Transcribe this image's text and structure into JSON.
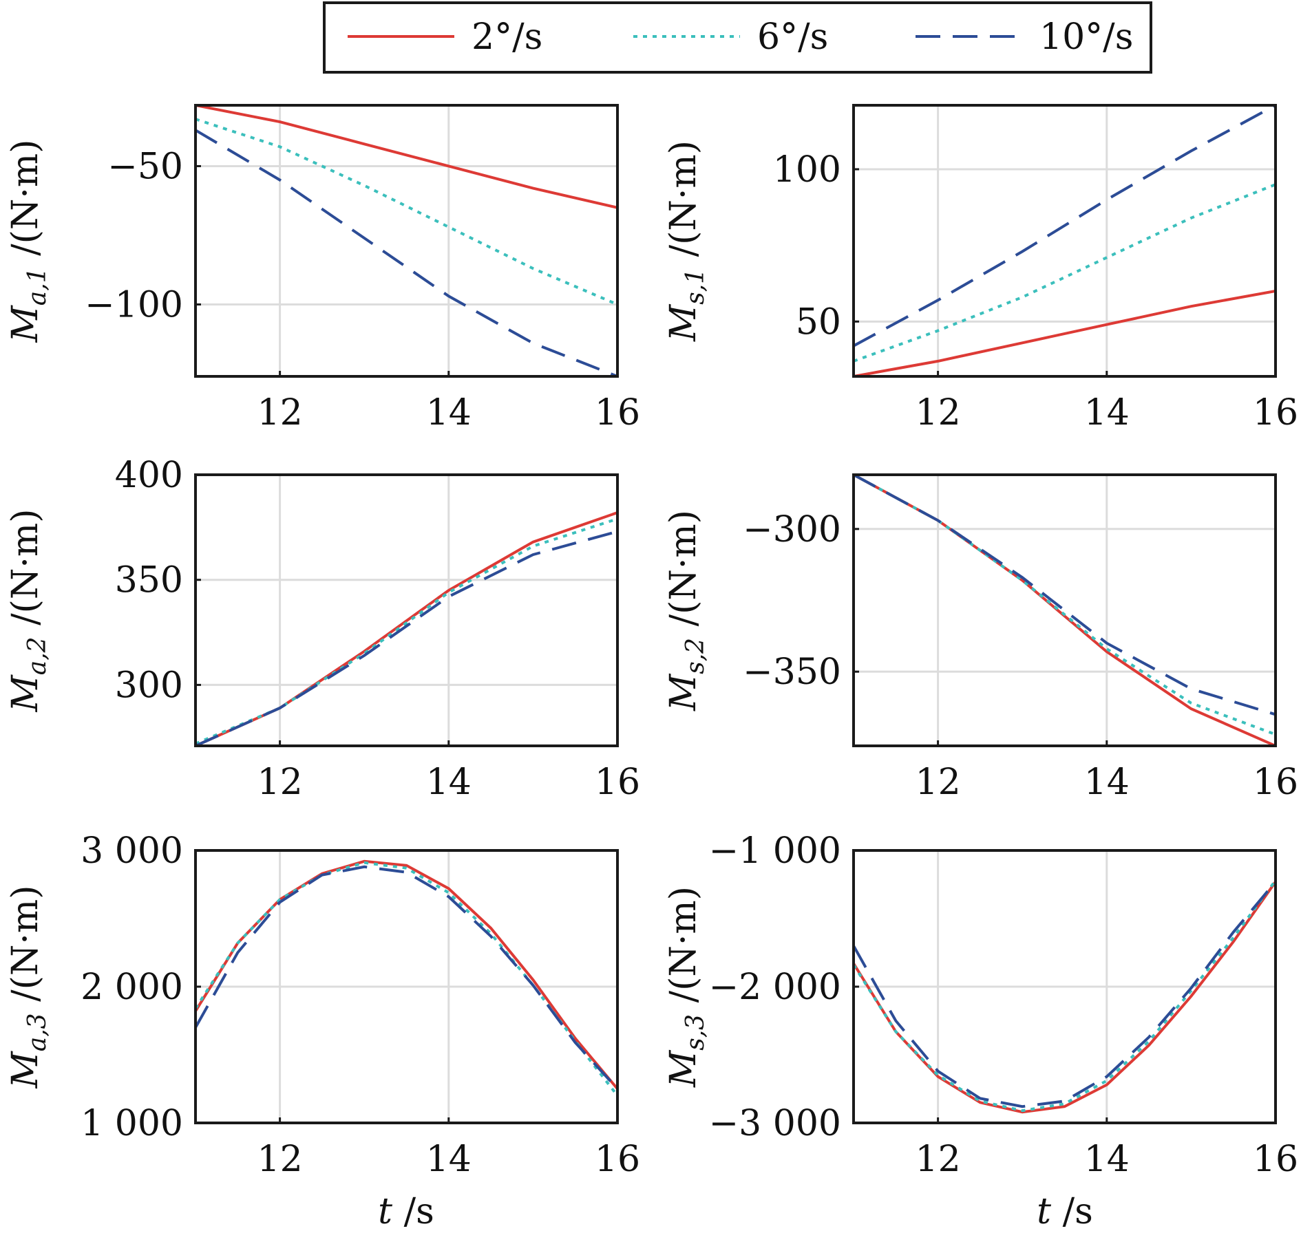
{
  "legend": {
    "placement": "top-center",
    "entries": [
      {
        "label": "2°/s",
        "color": "#dd3a35",
        "dash": "solid"
      },
      {
        "label": "6°/s",
        "color": "#3bbfbc",
        "dash": "dotted"
      },
      {
        "label": "10°/s",
        "color": "#2c4c96",
        "dash": "dashed"
      }
    ]
  },
  "chart_data": [
    {
      "type": "line",
      "panel": "a1",
      "ylabel": "M_{a,1} /(N·m)",
      "xlabel": "",
      "x": [
        11,
        12,
        13,
        14,
        15,
        16
      ],
      "xlim": [
        11,
        16
      ],
      "ylim": [
        -126,
        -28
      ],
      "xticks": [
        "12",
        "14",
        "16"
      ],
      "xtick_values": [
        12,
        14,
        16
      ],
      "yticks": [
        "−50",
        "−100"
      ],
      "ytick_values": [
        -50,
        -100
      ],
      "grid": true,
      "series": [
        {
          "name": "2°/s",
          "values": [
            -28,
            -34,
            -42,
            -50,
            -58,
            -65
          ]
        },
        {
          "name": "6°/s",
          "values": [
            -33,
            -43,
            -57,
            -72,
            -87,
            -100
          ]
        },
        {
          "name": "10°/s",
          "values": [
            -37,
            -55,
            -76,
            -97,
            -114,
            -126
          ]
        }
      ]
    },
    {
      "type": "line",
      "panel": "s1",
      "ylabel": "M_{s,1} /(N·m)",
      "xlabel": "",
      "x": [
        11,
        12,
        13,
        14,
        15,
        16
      ],
      "xlim": [
        11,
        16
      ],
      "ylim": [
        32,
        121
      ],
      "xticks": [
        "12",
        "14",
        "16"
      ],
      "xtick_values": [
        12,
        14,
        16
      ],
      "yticks": [
        "100",
        "50"
      ],
      "ytick_values": [
        100,
        50
      ],
      "grid": true,
      "series": [
        {
          "name": "2°/s",
          "values": [
            32,
            37,
            43,
            49,
            55,
            60
          ]
        },
        {
          "name": "6°/s",
          "values": [
            37,
            47,
            58,
            71,
            84,
            95
          ]
        },
        {
          "name": "10°/s",
          "values": [
            42,
            57,
            73,
            90,
            106,
            121
          ]
        }
      ]
    },
    {
      "type": "line",
      "panel": "a2",
      "ylabel": "M_{a,2} /(N·m)",
      "xlabel": "",
      "x": [
        11,
        12,
        13,
        14,
        15,
        16
      ],
      "xlim": [
        11,
        16
      ],
      "ylim": [
        271,
        400
      ],
      "xticks": [
        "12",
        "14",
        "16"
      ],
      "xtick_values": [
        12,
        14,
        16
      ],
      "yticks": [
        "400",
        "350",
        "300"
      ],
      "ytick_values": [
        400,
        350,
        300
      ],
      "grid": true,
      "series": [
        {
          "name": "2°/s",
          "values": [
            271,
            289,
            316,
            345,
            368,
            382
          ]
        },
        {
          "name": "6°/s",
          "values": [
            272,
            289,
            315,
            344,
            366,
            379
          ]
        },
        {
          "name": "10°/s",
          "values": [
            271,
            289,
            314,
            342,
            362,
            373
          ]
        }
      ]
    },
    {
      "type": "line",
      "panel": "s2",
      "ylabel": "M_{s,2} /(N·m)",
      "xlabel": "",
      "x": [
        11,
        12,
        13,
        14,
        15,
        16
      ],
      "xlim": [
        11,
        16
      ],
      "ylim": [
        -376,
        -281
      ],
      "xticks": [
        "12",
        "14",
        "16"
      ],
      "xtick_values": [
        12,
        14,
        16
      ],
      "yticks": [
        "−300",
        "−350"
      ],
      "ytick_values": [
        -300,
        -350
      ],
      "grid": true,
      "series": [
        {
          "name": "2°/s",
          "values": [
            -281,
            -297,
            -318,
            -343,
            -363,
            -376
          ]
        },
        {
          "name": "6°/s",
          "values": [
            -281,
            -297,
            -318,
            -342,
            -361,
            -372
          ]
        },
        {
          "name": "10°/s",
          "values": [
            -281,
            -297,
            -317,
            -340,
            -356,
            -365
          ]
        }
      ]
    },
    {
      "type": "line",
      "panel": "a3",
      "ylabel": "M_{a,3} /(N·m)",
      "xlabel": "",
      "x": [
        11,
        11.5,
        12,
        12.5,
        13,
        13.5,
        14,
        14.5,
        15,
        15.5,
        16
      ],
      "xlim": [
        11,
        16
      ],
      "ylim": [
        1000,
        3000
      ],
      "xticks": [
        "12",
        "14",
        "16"
      ],
      "xtick_values": [
        12,
        14,
        16
      ],
      "yticks": [
        "3 000",
        "2 000",
        "1 000"
      ],
      "ytick_values": [
        3000,
        2000,
        1000
      ],
      "grid": true,
      "series": [
        {
          "name": "2°/s",
          "values": [
            1820,
            2320,
            2640,
            2830,
            2920,
            2890,
            2720,
            2430,
            2050,
            1620,
            1250
          ]
        },
        {
          "name": "6°/s",
          "values": [
            1840,
            2320,
            2640,
            2820,
            2910,
            2870,
            2690,
            2390,
            2010,
            1600,
            1200
          ]
        },
        {
          "name": "10°/s",
          "values": [
            1700,
            2250,
            2620,
            2820,
            2880,
            2840,
            2660,
            2370,
            2010,
            1590,
            1250
          ]
        }
      ]
    },
    {
      "type": "line",
      "panel": "s3",
      "ylabel": "M_{s,3} /(N·m)",
      "xlabel": "",
      "x": [
        11,
        11.5,
        12,
        12.5,
        13,
        13.5,
        14,
        14.5,
        15,
        15.5,
        16
      ],
      "xlim": [
        11,
        16
      ],
      "ylim": [
        -3000,
        -1000
      ],
      "xticks": [
        "12",
        "14",
        "16"
      ],
      "xtick_values": [
        12,
        14,
        16
      ],
      "yticks": [
        "−1 000",
        "−2 000",
        "−3 000"
      ],
      "ytick_values": [
        -1000,
        -2000,
        -3000
      ],
      "grid": true,
      "series": [
        {
          "name": "2°/s",
          "values": [
            -1830,
            -2330,
            -2660,
            -2850,
            -2920,
            -2880,
            -2720,
            -2430,
            -2070,
            -1670,
            -1230
          ]
        },
        {
          "name": "6°/s",
          "values": [
            -1840,
            -2330,
            -2650,
            -2840,
            -2910,
            -2860,
            -2690,
            -2400,
            -2030,
            -1640,
            -1220
          ]
        },
        {
          "name": "10°/s",
          "values": [
            -1700,
            -2250,
            -2620,
            -2820,
            -2880,
            -2840,
            -2660,
            -2370,
            -2010,
            -1600,
            -1230
          ]
        }
      ]
    }
  ],
  "xlabels": {
    "left": "t /s",
    "right": "t /s"
  }
}
